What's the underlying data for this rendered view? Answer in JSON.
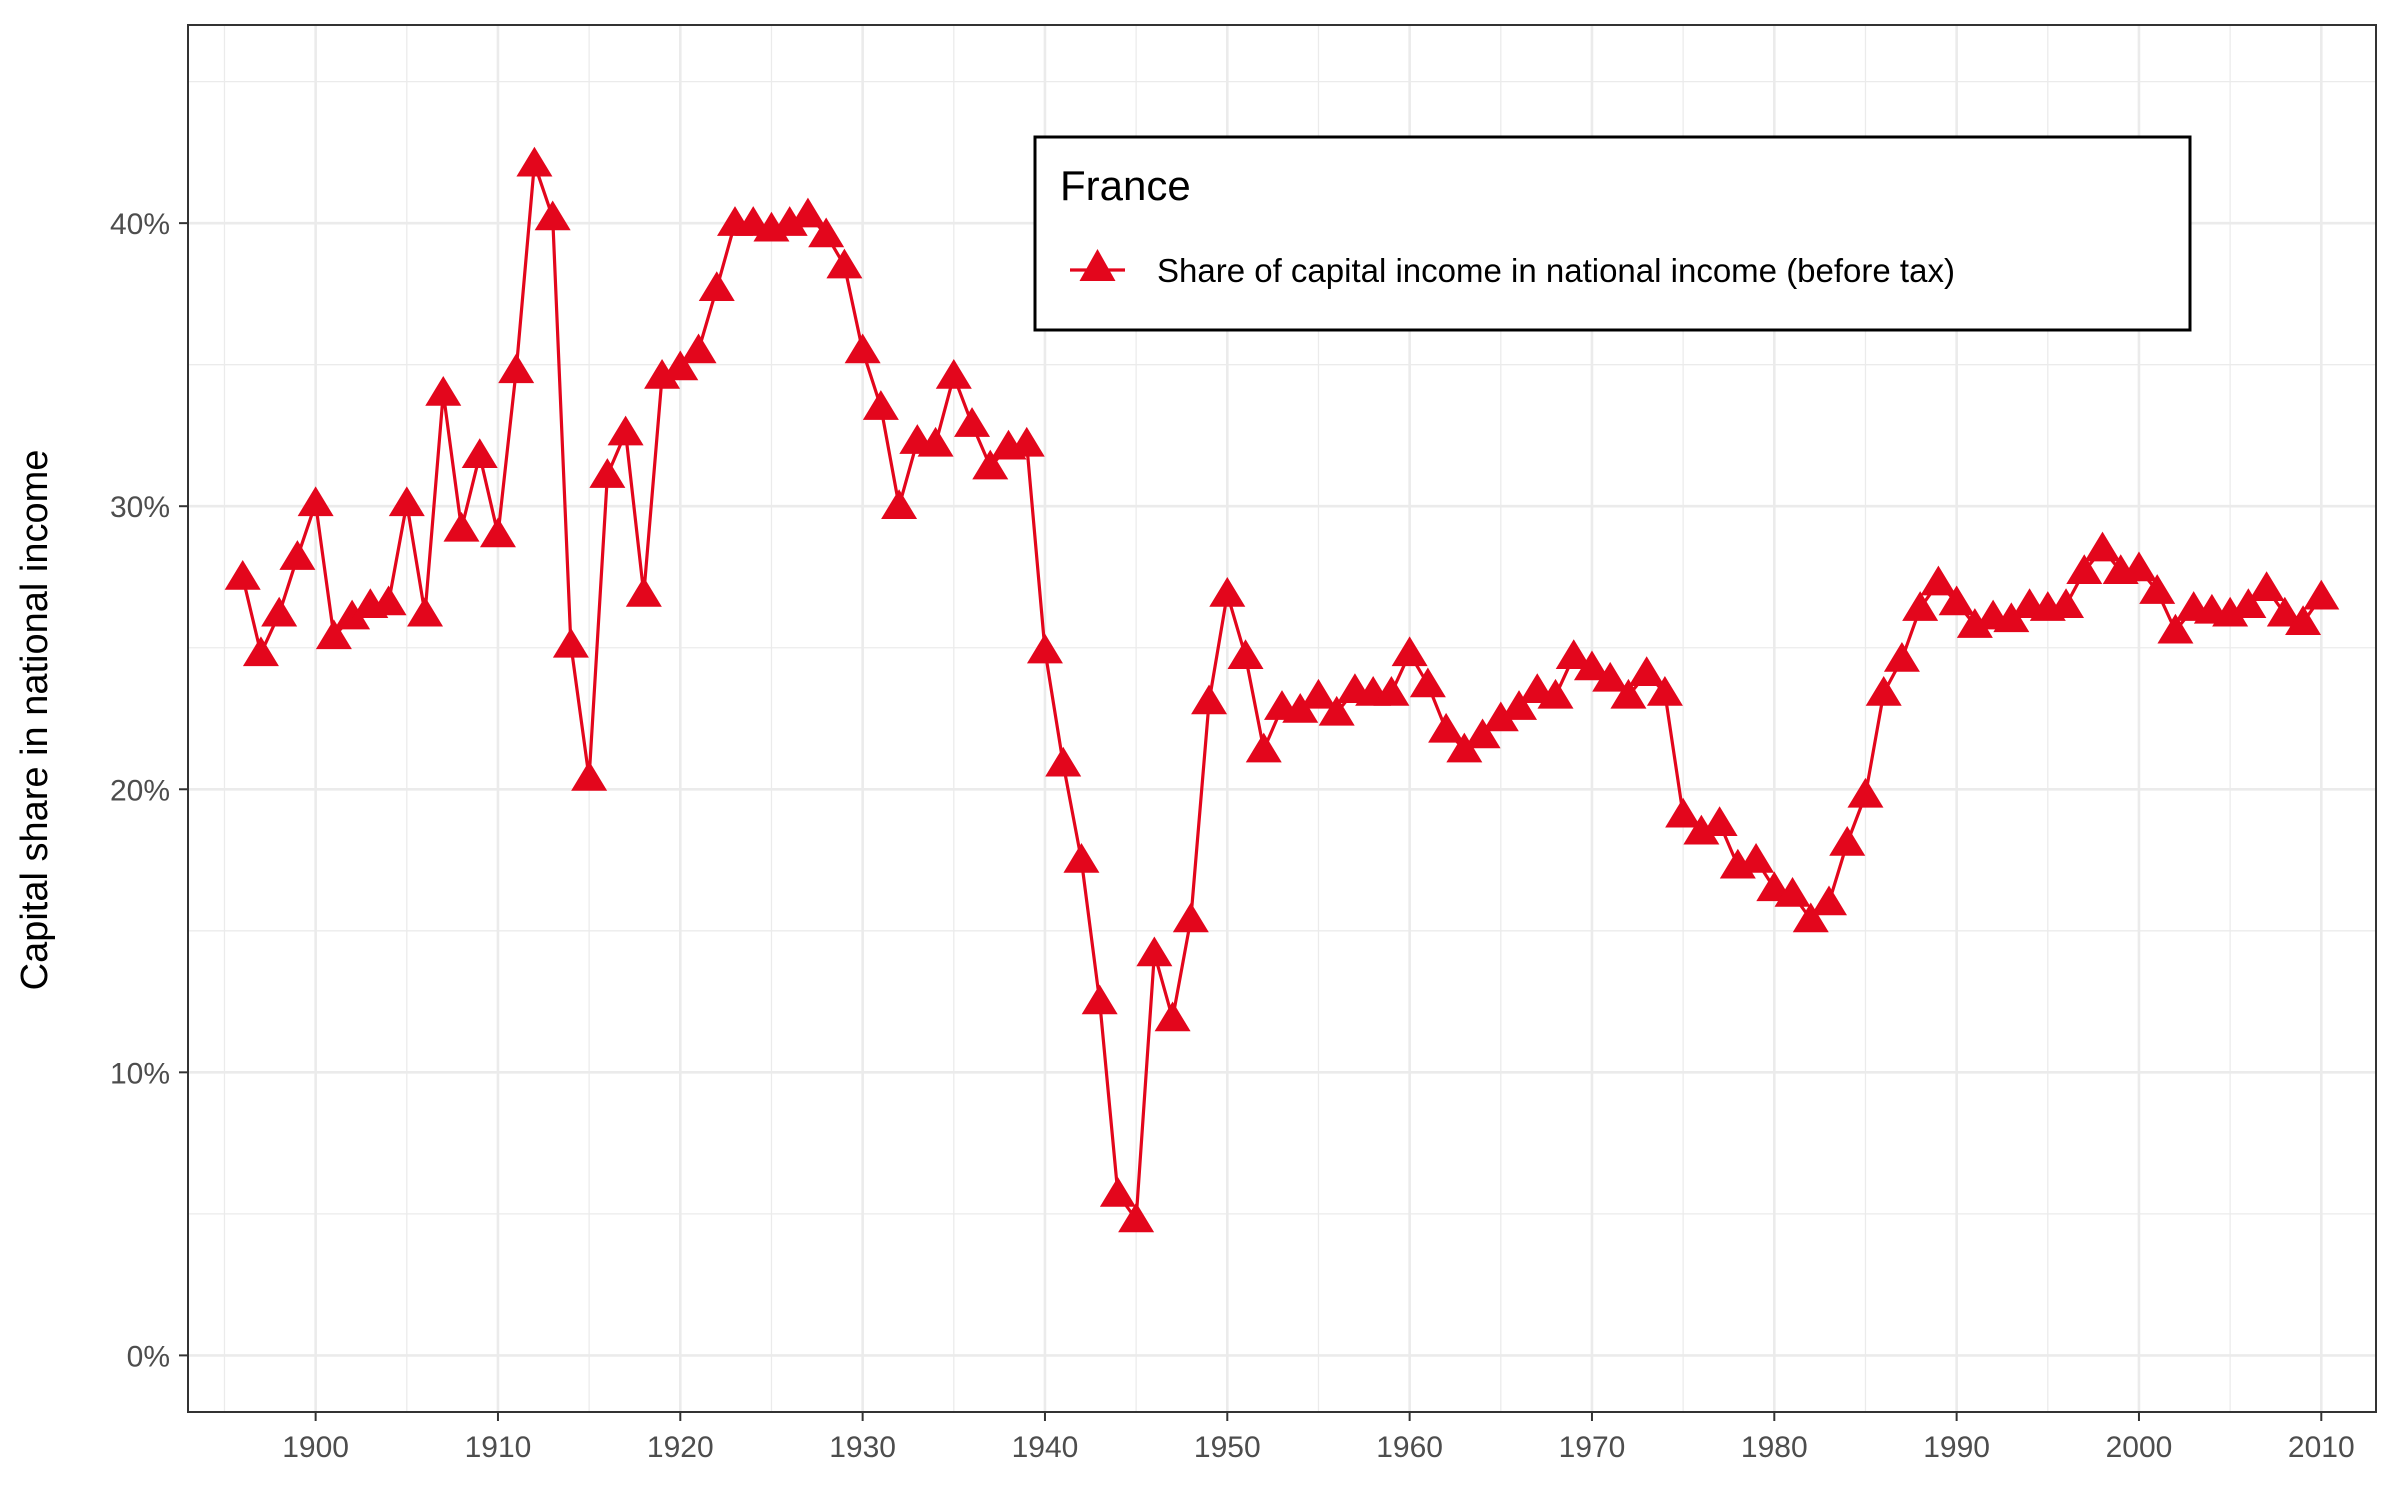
{
  "chart_data": {
    "type": "line",
    "title": "",
    "xlabel": "",
    "ylabel": "Capital share in national income",
    "xlim": [
      1893,
      2013
    ],
    "ylim": [
      -2,
      47
    ],
    "x_ticks": [
      1900,
      1910,
      1920,
      1930,
      1940,
      1950,
      1960,
      1970,
      1980,
      1990,
      2000,
      2010
    ],
    "y_ticks": [
      0,
      10,
      20,
      30,
      40
    ],
    "y_tick_labels": [
      "0%",
      "10%",
      "20%",
      "30%",
      "40%"
    ],
    "grid": true,
    "legend": {
      "title": "France",
      "placement": "top-right"
    },
    "colors": {
      "series": "#e3061c",
      "grid": "#ebebeb",
      "frame": "#333333"
    },
    "series": [
      {
        "name": "Share of capital income in national income (before tax)",
        "marker": "triangle",
        "x": [
          1896,
          1897,
          1898,
          1899,
          1900,
          1901,
          1902,
          1903,
          1904,
          1905,
          1906,
          1907,
          1908,
          1909,
          1910,
          1911,
          1912,
          1913,
          1914,
          1915,
          1916,
          1917,
          1918,
          1919,
          1920,
          1921,
          1922,
          1923,
          1924,
          1925,
          1926,
          1927,
          1928,
          1929,
          1930,
          1931,
          1932,
          1933,
          1934,
          1935,
          1936,
          1937,
          1938,
          1939,
          1940,
          1941,
          1942,
          1943,
          1944,
          1945,
          1946,
          1947,
          1948,
          1949,
          1950,
          1951,
          1952,
          1953,
          1954,
          1955,
          1956,
          1957,
          1958,
          1959,
          1960,
          1961,
          1962,
          1963,
          1964,
          1965,
          1966,
          1967,
          1968,
          1969,
          1970,
          1971,
          1972,
          1973,
          1974,
          1975,
          1976,
          1977,
          1978,
          1979,
          1980,
          1981,
          1982,
          1983,
          1984,
          1985,
          1986,
          1987,
          1988,
          1989,
          1990,
          1991,
          1992,
          1993,
          1994,
          1995,
          1996,
          1997,
          1998,
          1999,
          2000,
          2001,
          2002,
          2003,
          2004,
          2005,
          2006,
          2007,
          2008,
          2009,
          2010
        ],
        "values": [
          27.5,
          24.8,
          26.2,
          28.2,
          30.1,
          25.4,
          26.1,
          26.5,
          26.6,
          30.1,
          26.2,
          34.0,
          29.2,
          31.8,
          29.0,
          34.8,
          42.1,
          40.2,
          25.1,
          20.4,
          31.1,
          32.6,
          26.9,
          34.6,
          34.9,
          35.5,
          37.7,
          40.0,
          40.0,
          39.8,
          40.0,
          40.3,
          39.6,
          38.5,
          35.5,
          33.5,
          30.0,
          32.3,
          32.2,
          34.6,
          32.9,
          31.4,
          32.1,
          32.2,
          24.9,
          20.9,
          17.5,
          12.5,
          5.7,
          4.8,
          14.2,
          11.9,
          15.4,
          23.1,
          26.9,
          24.7,
          21.4,
          22.9,
          22.8,
          23.3,
          22.7,
          23.5,
          23.4,
          23.4,
          24.8,
          23.7,
          22.1,
          21.4,
          21.9,
          22.5,
          22.9,
          23.5,
          23.3,
          24.7,
          24.3,
          23.9,
          23.3,
          24.1,
          23.4,
          19.1,
          18.5,
          18.8,
          17.3,
          17.5,
          16.5,
          16.3,
          15.4,
          16.0,
          18.1,
          19.8,
          23.4,
          24.6,
          26.4,
          27.3,
          26.6,
          25.8,
          26.1,
          26.0,
          26.5,
          26.4,
          26.5,
          27.7,
          28.5,
          27.7,
          27.8,
          27.0,
          25.6,
          26.4,
          26.3,
          26.2,
          26.5,
          27.1,
          26.2,
          25.9,
          26.8
        ]
      }
    ]
  }
}
